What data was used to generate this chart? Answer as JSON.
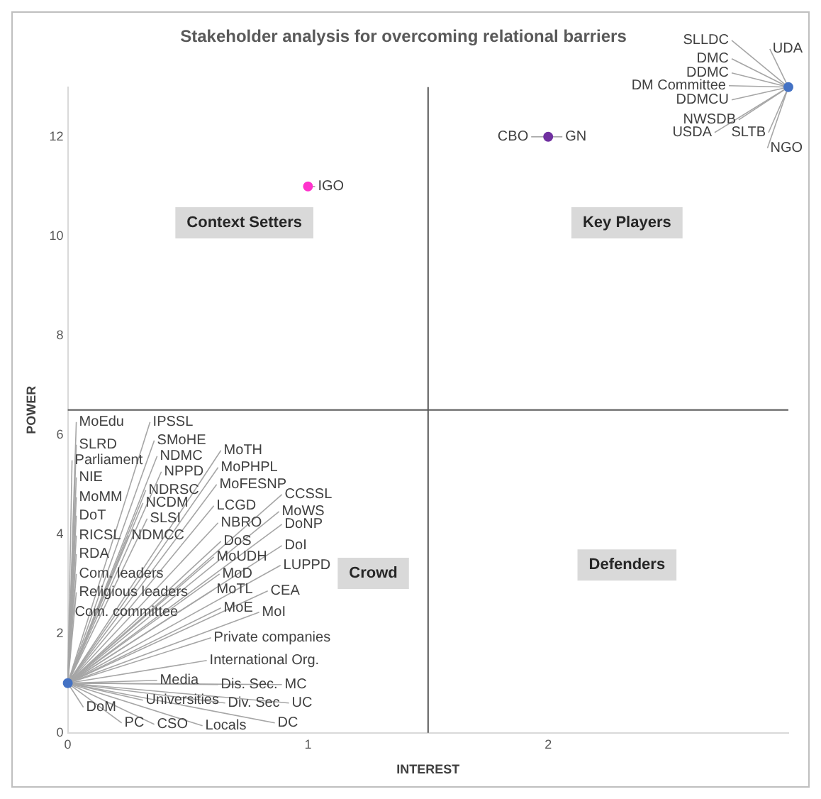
{
  "chart_data": {
    "type": "scatter",
    "title": "Stakeholder analysis for overcoming relational barriers",
    "xlabel": "INTEREST",
    "ylabel": "POWER",
    "xlim": [
      0,
      3
    ],
    "ylim": [
      0,
      13
    ],
    "xticks": [
      0,
      1,
      2
    ],
    "yticks": [
      0,
      2,
      4,
      6,
      8,
      10,
      12
    ],
    "marker": "circle",
    "series": [
      {
        "color": "#4472c4",
        "x": [
          0
        ],
        "values": [
          1
        ]
      },
      {
        "color": "#ff33cc",
        "x": [
          1
        ],
        "values": [
          11
        ]
      },
      {
        "color": "#7030a0",
        "x": [
          2
        ],
        "values": [
          12
        ]
      },
      {
        "color": "#4472c4",
        "x": [
          3
        ],
        "values": [
          13
        ]
      }
    ],
    "ref_lines": [
      {
        "axis": "x",
        "value": 1.5,
        "color": "#595959"
      },
      {
        "axis": "y",
        "value": 6.5,
        "color": "#595959"
      }
    ],
    "annotations": [
      "Context Setters",
      "Key Players",
      "Crowd",
      "Defenders",
      {
        "text": "IGO",
        "x": 1,
        "y": 11
      },
      {
        "text": "CBO",
        "x": 2,
        "y": 12
      },
      {
        "text": "GN",
        "x": 2,
        "y": 12
      },
      {
        "text": "SLLDC",
        "x": 3,
        "y": 13
      },
      {
        "text": "UDA",
        "x": 3,
        "y": 13
      },
      {
        "text": "DMC",
        "x": 3,
        "y": 13
      },
      {
        "text": "DDMC",
        "x": 3,
        "y": 13
      },
      {
        "text": "DM Committee",
        "x": 3,
        "y": 13
      },
      {
        "text": "DDMCU",
        "x": 3,
        "y": 13
      },
      {
        "text": "NWSDB",
        "x": 3,
        "y": 13
      },
      {
        "text": "USDA",
        "x": 3,
        "y": 13
      },
      {
        "text": "SLTB",
        "x": 3,
        "y": 13
      },
      {
        "text": "NGO",
        "x": 3,
        "y": 13
      },
      {
        "text": "MoEdu",
        "x": 0,
        "y": 1
      },
      {
        "text": "SLRD",
        "x": 0,
        "y": 1
      },
      {
        "text": "Parliament",
        "x": 0,
        "y": 1
      },
      {
        "text": "NIE",
        "x": 0,
        "y": 1
      },
      {
        "text": "MoMM",
        "x": 0,
        "y": 1
      },
      {
        "text": "DoT",
        "x": 0,
        "y": 1
      },
      {
        "text": "RICSL",
        "x": 0,
        "y": 1
      },
      {
        "text": "RDA",
        "x": 0,
        "y": 1
      },
      {
        "text": "Com. leaders",
        "x": 0,
        "y": 1
      },
      {
        "text": "Religious leaders",
        "x": 0,
        "y": 1
      },
      {
        "text": "Com. committee",
        "x": 0,
        "y": 1
      },
      {
        "text": "IPSSL",
        "x": 0,
        "y": 1
      },
      {
        "text": "SMoHE",
        "x": 0,
        "y": 1
      },
      {
        "text": "NDMC",
        "x": 0,
        "y": 1
      },
      {
        "text": "NPPD",
        "x": 0,
        "y": 1
      },
      {
        "text": "NDRSC",
        "x": 0,
        "y": 1
      },
      {
        "text": "NCDM",
        "x": 0,
        "y": 1
      },
      {
        "text": "SLSI",
        "x": 0,
        "y": 1
      },
      {
        "text": "NDMCC",
        "x": 0,
        "y": 1
      },
      {
        "text": "MoTH",
        "x": 0,
        "y": 1
      },
      {
        "text": "MoPHPL",
        "x": 0,
        "y": 1
      },
      {
        "text": "MoFESNP",
        "x": 0,
        "y": 1
      },
      {
        "text": "LCGD",
        "x": 0,
        "y": 1
      },
      {
        "text": "NBRO",
        "x": 0,
        "y": 1
      },
      {
        "text": "DoS",
        "x": 0,
        "y": 1
      },
      {
        "text": "MoUDH",
        "x": 0,
        "y": 1
      },
      {
        "text": "MoD",
        "x": 0,
        "y": 1
      },
      {
        "text": "MoTL",
        "x": 0,
        "y": 1
      },
      {
        "text": "MoE",
        "x": 0,
        "y": 1
      },
      {
        "text": "CCSSL",
        "x": 0,
        "y": 1
      },
      {
        "text": "MoWS",
        "x": 0,
        "y": 1
      },
      {
        "text": "DoNP",
        "x": 0,
        "y": 1
      },
      {
        "text": "DoI",
        "x": 0,
        "y": 1
      },
      {
        "text": "LUPPD",
        "x": 0,
        "y": 1
      },
      {
        "text": "CEA",
        "x": 0,
        "y": 1
      },
      {
        "text": "MoI",
        "x": 0,
        "y": 1
      },
      {
        "text": "Private companies",
        "x": 0,
        "y": 1
      },
      {
        "text": "International Org.",
        "x": 0,
        "y": 1
      },
      {
        "text": "Media",
        "x": 0,
        "y": 1
      },
      {
        "text": "Dis. Sec.",
        "x": 0,
        "y": 1
      },
      {
        "text": "MC",
        "x": 0,
        "y": 1
      },
      {
        "text": "Universities",
        "x": 0,
        "y": 1
      },
      {
        "text": "Div. Sec",
        "x": 0,
        "y": 1
      },
      {
        "text": "UC",
        "x": 0,
        "y": 1
      },
      {
        "text": "DoM",
        "x": 0,
        "y": 1
      },
      {
        "text": "PC",
        "x": 0,
        "y": 1
      },
      {
        "text": "CSO",
        "x": 0,
        "y": 1
      },
      {
        "text": "Locals",
        "x": 0,
        "y": 1
      },
      {
        "text": "DC",
        "x": 0,
        "y": 1
      }
    ]
  }
}
